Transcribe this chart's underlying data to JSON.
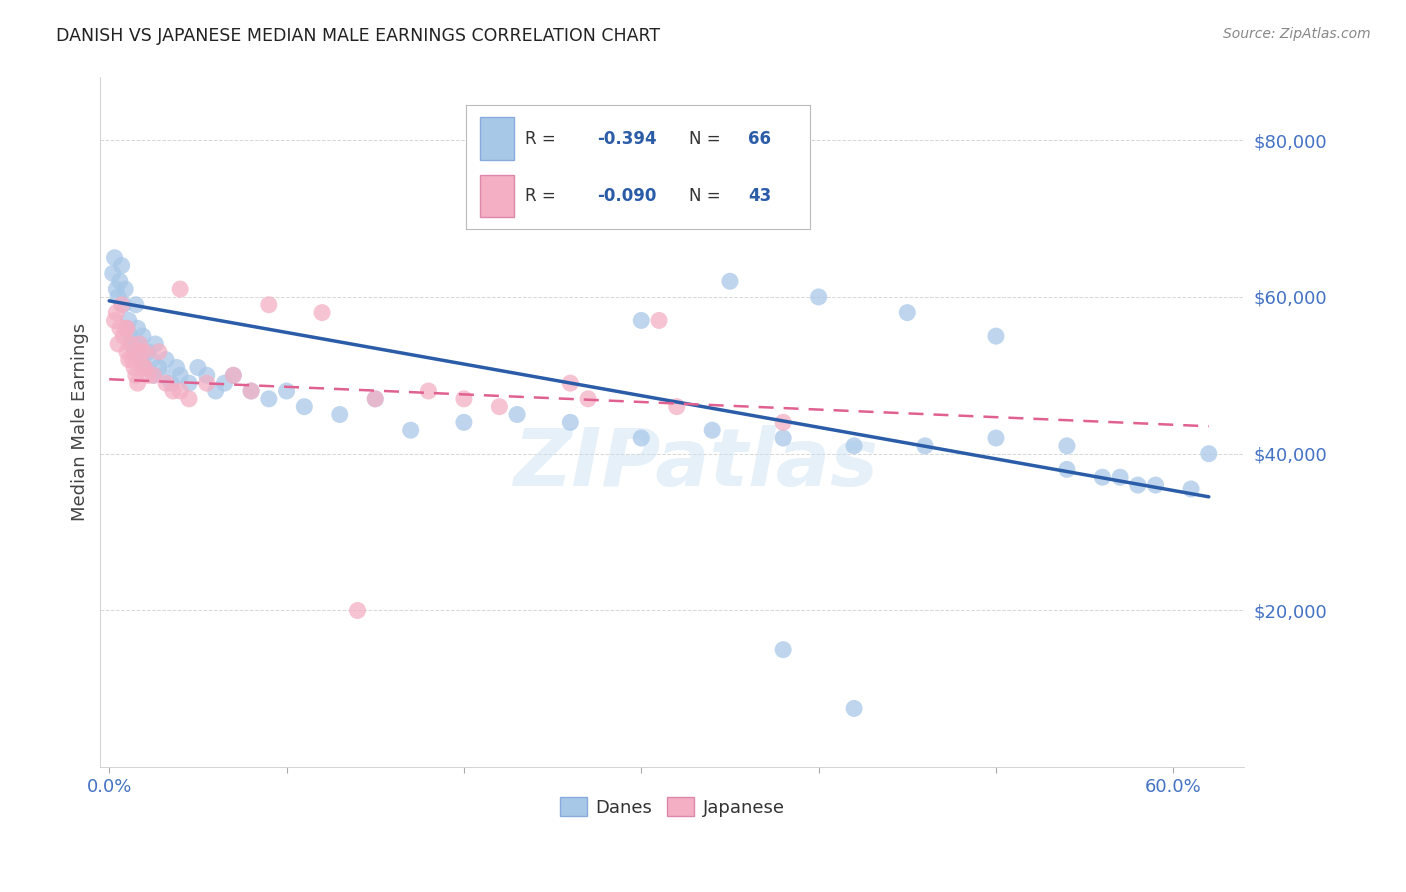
{
  "title": "DANISH VS JAPANESE MEDIAN MALE EARNINGS CORRELATION CHART",
  "source": "Source: ZipAtlas.com",
  "ylabel": "Median Male Earnings",
  "y_ticks": [
    20000,
    40000,
    60000,
    80000
  ],
  "y_tick_labels": [
    "$20,000",
    "$40,000",
    "$60,000",
    "$80,000"
  ],
  "legend_danes": "Danes",
  "legend_japanese": "Japanese",
  "danes_color": "#a8c8e8",
  "japanese_color": "#f4afc4",
  "danes_line_color": "#2b5ca8",
  "japanese_line_color": "#e06090",
  "danes_scatter_x": [
    0.002,
    0.003,
    0.004,
    0.005,
    0.006,
    0.007,
    0.008,
    0.009,
    0.01,
    0.011,
    0.012,
    0.013,
    0.014,
    0.015,
    0.016,
    0.017,
    0.018,
    0.019,
    0.02,
    0.022,
    0.024,
    0.025,
    0.026,
    0.028,
    0.03,
    0.032,
    0.035,
    0.038,
    0.04,
    0.045,
    0.05,
    0.055,
    0.06,
    0.065,
    0.07,
    0.08,
    0.09,
    0.1,
    0.11,
    0.13,
    0.15,
    0.17,
    0.2,
    0.23,
    0.26,
    0.3,
    0.34,
    0.38,
    0.42,
    0.46,
    0.5,
    0.54,
    0.57,
    0.59,
    0.61,
    0.38,
    0.42,
    0.62,
    0.54,
    0.56,
    0.58,
    0.3,
    0.35,
    0.4,
    0.45,
    0.5
  ],
  "danes_scatter_y": [
    63000,
    65000,
    61000,
    60000,
    62000,
    64000,
    59000,
    61000,
    56000,
    57000,
    55000,
    54000,
    53000,
    59000,
    56000,
    54000,
    52000,
    55000,
    51000,
    53000,
    52000,
    50000,
    54000,
    51000,
    50000,
    52000,
    49000,
    51000,
    50000,
    49000,
    51000,
    50000,
    48000,
    49000,
    50000,
    48000,
    47000,
    48000,
    46000,
    45000,
    47000,
    43000,
    44000,
    45000,
    44000,
    42000,
    43000,
    42000,
    41000,
    41000,
    42000,
    41000,
    37000,
    36000,
    35500,
    15000,
    7500,
    40000,
    38000,
    37000,
    36000,
    57000,
    62000,
    60000,
    58000,
    55000
  ],
  "japanese_scatter_x": [
    0.003,
    0.004,
    0.005,
    0.006,
    0.007,
    0.008,
    0.009,
    0.01,
    0.011,
    0.012,
    0.013,
    0.014,
    0.015,
    0.016,
    0.017,
    0.018,
    0.019,
    0.02,
    0.022,
    0.025,
    0.028,
    0.032,
    0.036,
    0.04,
    0.045,
    0.055,
    0.07,
    0.09,
    0.12,
    0.15,
    0.18,
    0.22,
    0.27,
    0.32,
    0.38,
    0.31,
    0.26,
    0.2,
    0.14,
    0.08,
    0.04,
    0.02,
    0.01
  ],
  "japanese_scatter_y": [
    57000,
    58000,
    54000,
    56000,
    59000,
    55000,
    56000,
    53000,
    52000,
    54000,
    52000,
    51000,
    50000,
    49000,
    54000,
    53000,
    51000,
    51000,
    50000,
    50000,
    53000,
    49000,
    48000,
    48000,
    47000,
    49000,
    50000,
    59000,
    58000,
    47000,
    48000,
    46000,
    47000,
    46000,
    44000,
    57000,
    49000,
    47000,
    20000,
    48000,
    61000,
    53000,
    56000
  ],
  "danes_line_x0": 0.0,
  "danes_line_x1": 0.62,
  "danes_line_y0": 59500,
  "danes_line_y1": 34500,
  "japanese_line_x0": 0.0,
  "japanese_line_x1": 0.62,
  "japanese_line_y0": 49500,
  "japanese_line_y1": 43500,
  "xlim_min": -0.005,
  "xlim_max": 0.64,
  "ylim_min": 0,
  "ylim_max": 88000,
  "background_color": "#ffffff",
  "grid_color": "#cccccc",
  "title_color": "#222222",
  "axis_label_color": "#444444",
  "tick_label_color": "#4472c4",
  "source_color": "#888888",
  "watermark_text": "ZIPatlas",
  "watermark_color": "#c8dff0"
}
